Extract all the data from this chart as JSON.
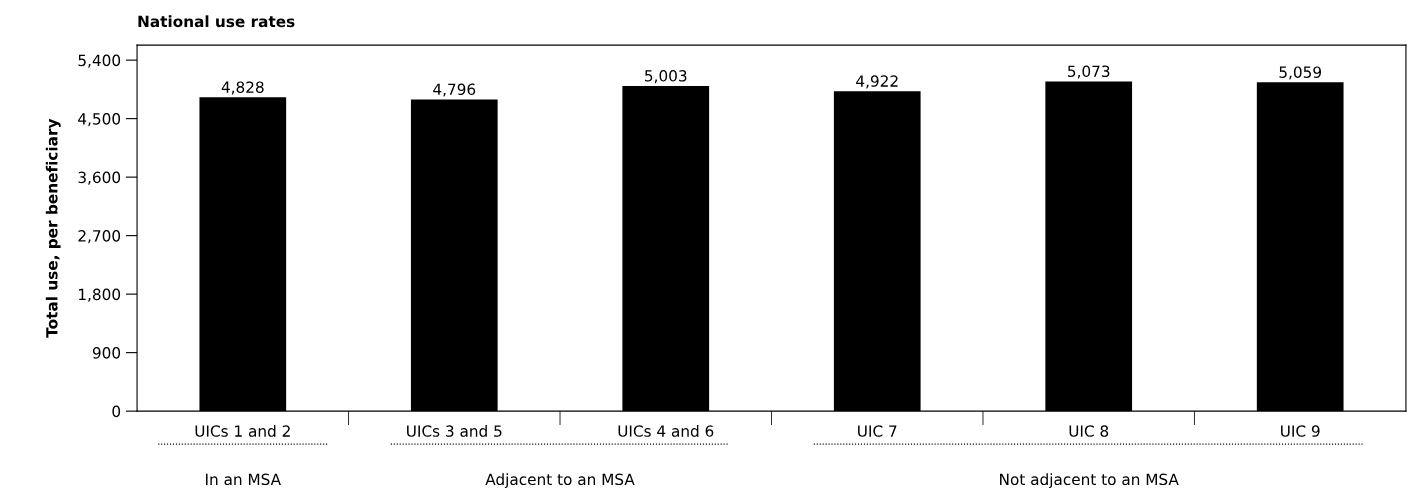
{
  "chart_data": {
    "type": "bar",
    "title": "National use rates",
    "ylabel": "Total use, per beneficiary",
    "categories": [
      "UICs 1 and 2",
      "UICs 3 and 5",
      "UICs 4 and 6",
      "UIC 7",
      "UIC 8",
      "UIC 9"
    ],
    "values": [
      4828,
      4796,
      5003,
      4922,
      5073,
      5059
    ],
    "value_labels": [
      "4,828",
      "4,796",
      "5,003",
      "4,922",
      "5,073",
      "5,059"
    ],
    "color": "#000000",
    "ylim": [
      0,
      5630
    ],
    "yticks": [
      {
        "value": 0,
        "label": "0"
      },
      {
        "value": 900,
        "label": "900"
      },
      {
        "value": 1800,
        "label": "1,800"
      },
      {
        "value": 2700,
        "label": "2,700"
      },
      {
        "value": 3600,
        "label": "3,600"
      },
      {
        "value": 4500,
        "label": "4,500"
      },
      {
        "value": 5400,
        "label": "5,400"
      }
    ],
    "annotations": [
      "In an MSA",
      "Adjacent to an MSA",
      "Not adjacent to an MSA"
    ],
    "grid": false,
    "legend": false
  }
}
